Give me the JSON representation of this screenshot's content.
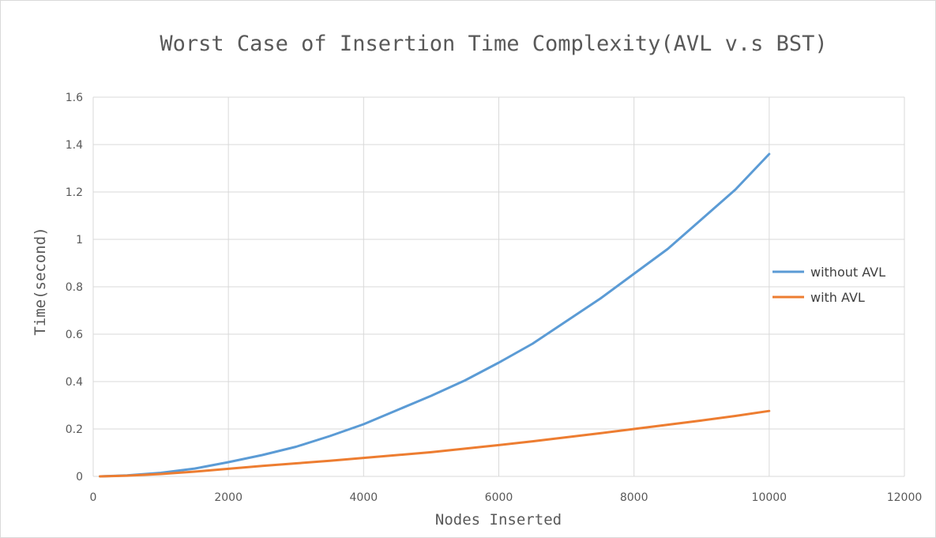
{
  "chart_data": {
    "type": "line",
    "title": "Worst Case of Insertion Time Complexity(AVL v.s BST)",
    "xlabel": "Nodes Inserted",
    "ylabel": "Time(second)",
    "xlim": [
      0,
      12000
    ],
    "ylim": [
      0,
      1.6
    ],
    "xticks": [
      "0",
      "2000",
      "4000",
      "6000",
      "8000",
      "10000",
      "12000"
    ],
    "yticks": [
      "0",
      "0.2",
      "0.4",
      "0.6",
      "0.8",
      "1",
      "1.2",
      "1.4",
      "1.6"
    ],
    "grid": true,
    "legend_position": "right",
    "series": [
      {
        "name": "without AVL",
        "color": "#5b9bd5",
        "x": [
          100,
          500,
          1000,
          1500,
          2000,
          2500,
          3000,
          3500,
          4000,
          4500,
          5000,
          5500,
          6000,
          6500,
          7000,
          7500,
          8000,
          8500,
          9000,
          9500,
          10000
        ],
        "y": [
          0,
          0.004,
          0.015,
          0.033,
          0.06,
          0.09,
          0.125,
          0.17,
          0.22,
          0.28,
          0.34,
          0.405,
          0.48,
          0.56,
          0.655,
          0.75,
          0.855,
          0.96,
          1.085,
          1.21,
          1.36
        ]
      },
      {
        "name": "with AVL",
        "color": "#ed7d31",
        "x": [
          100,
          500,
          1000,
          1500,
          2000,
          2500,
          3000,
          3500,
          4000,
          4500,
          5000,
          5500,
          6000,
          6500,
          7000,
          7500,
          8000,
          8500,
          9000,
          9500,
          10000
        ],
        "y": [
          0,
          0.003,
          0.01,
          0.02,
          0.032,
          0.044,
          0.055,
          0.066,
          0.078,
          0.09,
          0.102,
          0.117,
          0.132,
          0.148,
          0.165,
          0.182,
          0.2,
          0.218,
          0.236,
          0.255,
          0.276
        ]
      }
    ]
  }
}
